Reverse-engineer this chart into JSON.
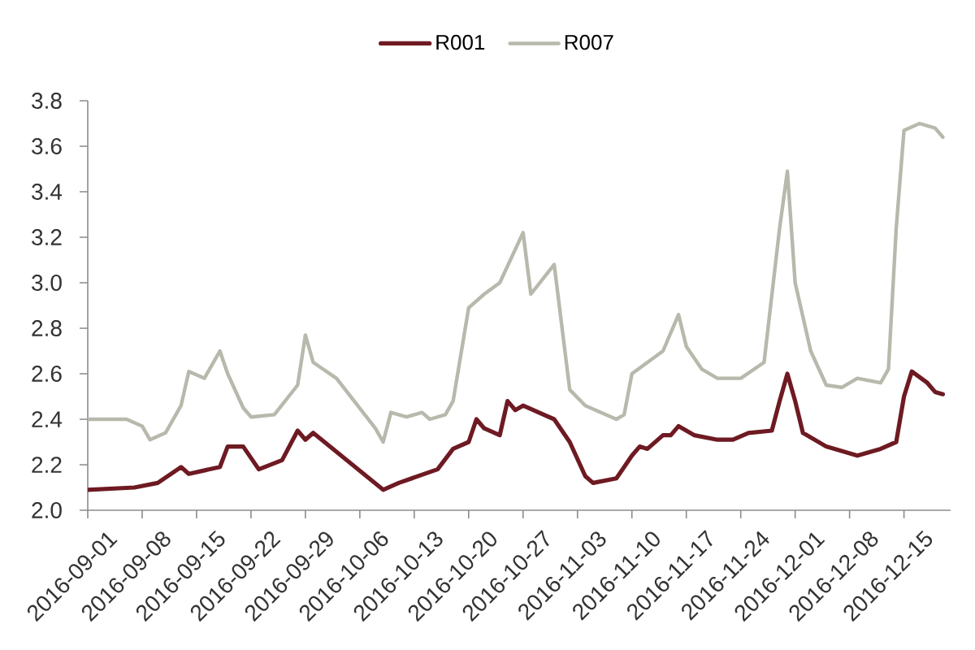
{
  "chart_data": {
    "type": "line",
    "xlim": [
      "2016-09-01",
      "2016-12-21"
    ],
    "xticks": [
      "2016-09-01",
      "2016-09-08",
      "2016-09-15",
      "2016-09-22",
      "2016-09-29",
      "2016-10-06",
      "2016-10-13",
      "2016-10-20",
      "2016-10-27",
      "2016-11-03",
      "2016-11-10",
      "2016-11-17",
      "2016-11-24",
      "2016-12-01",
      "2016-12-08",
      "2016-12-15"
    ],
    "ylim": [
      2.0,
      3.8
    ],
    "yticks": [
      {
        "value": 2.0,
        "label": "2.0"
      },
      2.2,
      2.4,
      2.6,
      2.8,
      {
        "value": 3.0,
        "label": "3.0"
      },
      3.2,
      3.4,
      3.6,
      3.8
    ],
    "legend": "top",
    "line_style": "solid",
    "series": [
      {
        "name": "R001",
        "color": "#6e1a22",
        "x": [
          "2016-09-01",
          "2016-09-07",
          "2016-09-10",
          "2016-09-13",
          "2016-09-14",
          "2016-09-18",
          "2016-09-19",
          "2016-09-21",
          "2016-09-23",
          "2016-09-26",
          "2016-09-28",
          "2016-09-29",
          "2016-09-30",
          "2016-10-09",
          "2016-10-11",
          "2016-10-16",
          "2016-10-18",
          "2016-10-20",
          "2016-10-21",
          "2016-10-22",
          "2016-10-24",
          "2016-10-25",
          "2016-10-26",
          "2016-10-27",
          "2016-10-31",
          "2016-11-02",
          "2016-11-04",
          "2016-11-05",
          "2016-11-08",
          "2016-11-10",
          "2016-11-11",
          "2016-11-12",
          "2016-11-14",
          "2016-11-15",
          "2016-11-16",
          "2016-11-18",
          "2016-11-21",
          "2016-11-23",
          "2016-11-25",
          "2016-11-28",
          "2016-11-29",
          "2016-11-30",
          "2016-12-01",
          "2016-12-02",
          "2016-12-05",
          "2016-12-09",
          "2016-12-12",
          "2016-12-14",
          "2016-12-15",
          "2016-12-16",
          "2016-12-18",
          "2016-12-19",
          "2016-12-20"
        ],
        "values": [
          2.09,
          2.1,
          2.12,
          2.19,
          2.16,
          2.19,
          2.28,
          2.28,
          2.18,
          2.22,
          2.35,
          2.31,
          2.34,
          2.09,
          2.12,
          2.18,
          2.27,
          2.3,
          2.4,
          2.36,
          2.33,
          2.48,
          2.44,
          2.46,
          2.4,
          2.3,
          2.15,
          2.12,
          2.14,
          2.24,
          2.28,
          2.27,
          2.33,
          2.33,
          2.37,
          2.33,
          2.31,
          2.31,
          2.34,
          2.35,
          2.48,
          2.6,
          2.48,
          2.34,
          2.28,
          2.24,
          2.27,
          2.3,
          2.5,
          2.61,
          2.56,
          2.52,
          2.51
        ]
      },
      {
        "name": "R007",
        "color": "#b8b8ac",
        "x": [
          "2016-09-01",
          "2016-09-06",
          "2016-09-08",
          "2016-09-09",
          "2016-09-11",
          "2016-09-13",
          "2016-09-14",
          "2016-09-16",
          "2016-09-18",
          "2016-09-19",
          "2016-09-21",
          "2016-09-22",
          "2016-09-25",
          "2016-09-28",
          "2016-09-29",
          "2016-09-30",
          "2016-10-03",
          "2016-10-08",
          "2016-10-09",
          "2016-10-10",
          "2016-10-12",
          "2016-10-14",
          "2016-10-15",
          "2016-10-17",
          "2016-10-18",
          "2016-10-20",
          "2016-10-22",
          "2016-10-24",
          "2016-10-27",
          "2016-10-28",
          "2016-10-31",
          "2016-11-02",
          "2016-11-04",
          "2016-11-08",
          "2016-11-09",
          "2016-11-10",
          "2016-11-14",
          "2016-11-16",
          "2016-11-17",
          "2016-11-19",
          "2016-11-21",
          "2016-11-24",
          "2016-11-27",
          "2016-11-29",
          "2016-11-30",
          "2016-12-01",
          "2016-12-03",
          "2016-12-05",
          "2016-12-07",
          "2016-12-09",
          "2016-12-12",
          "2016-12-13",
          "2016-12-14",
          "2016-12-15",
          "2016-12-17",
          "2016-12-19",
          "2016-12-20"
        ],
        "values": [
          2.4,
          2.4,
          2.37,
          2.31,
          2.34,
          2.46,
          2.61,
          2.58,
          2.7,
          2.6,
          2.45,
          2.41,
          2.42,
          2.55,
          2.77,
          2.65,
          2.58,
          2.36,
          2.3,
          2.43,
          2.41,
          2.43,
          2.4,
          2.42,
          2.48,
          2.89,
          2.95,
          3.0,
          3.22,
          2.95,
          3.08,
          2.53,
          2.46,
          2.4,
          2.42,
          2.6,
          2.7,
          2.86,
          2.72,
          2.62,
          2.58,
          2.58,
          2.65,
          3.24,
          3.49,
          3.0,
          2.7,
          2.55,
          2.54,
          2.58,
          2.56,
          2.62,
          3.24,
          3.67,
          3.7,
          3.68,
          3.64
        ]
      }
    ]
  }
}
